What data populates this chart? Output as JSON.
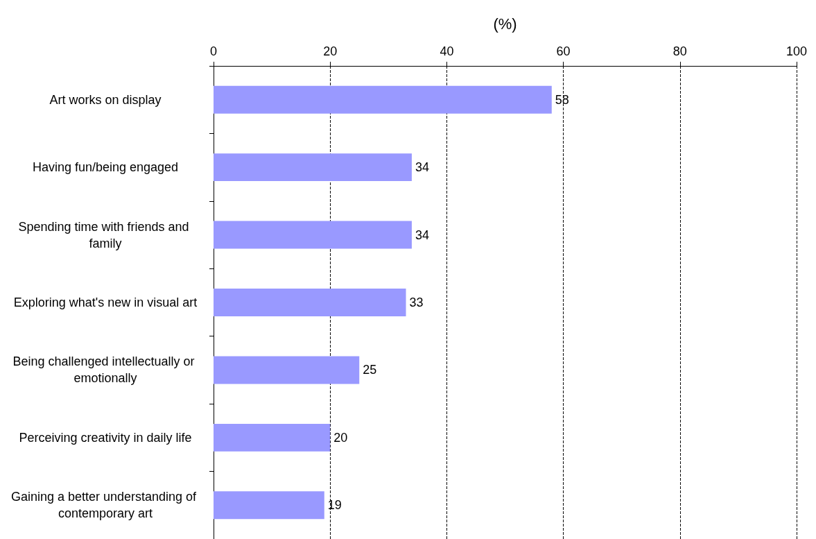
{
  "chart_data": {
    "type": "bar",
    "orientation": "horizontal",
    "xlabel": "(%)",
    "categories": [
      "Art works on display",
      "Having fun/being engaged",
      "Spending time with friends and family",
      "Exploring what's new in visual art",
      "Being challenged intellectually or emotionally",
      "Perceiving creativity in daily life",
      "Gaining a better understanding of contemporary art"
    ],
    "values": [
      58,
      34,
      34,
      33,
      25,
      20,
      19
    ],
    "color": "#9999ff",
    "xlim": [
      0,
      100
    ],
    "xticks": [
      0,
      20,
      40,
      60,
      80,
      100
    ],
    "grid": "x",
    "data_labels": true
  }
}
